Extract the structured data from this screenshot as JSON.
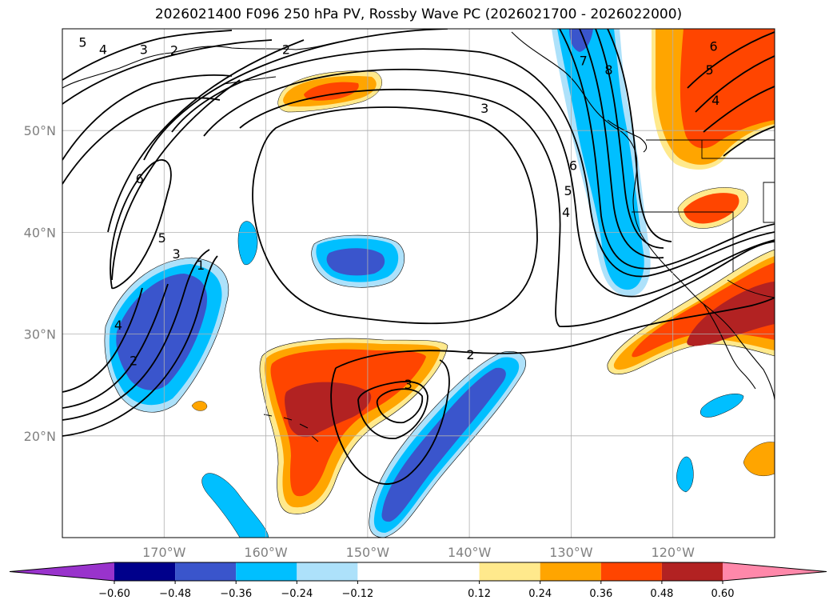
{
  "title": "2026021400 F096 250 hPa PV, Rossby Wave PC (2026021700 - 2026022000)",
  "colors": {
    "neg_extend": "#9933cc",
    "n060": "#00008b",
    "n048": "#3a55cc",
    "n036": "#00bfff",
    "n024": "#ade1fa",
    "neutral": "#ffffff",
    "p012": "#ffe98c",
    "p024": "#ffa500",
    "p036": "#ff4500",
    "p048": "#b22222",
    "pos_extend": "#ff88aa",
    "grid": "#b0b0b0",
    "coast": "#000000"
  },
  "chart_data": {
    "type": "map",
    "projection": "PlateCarree",
    "extent_lon": [
      -180,
      -110
    ],
    "extent_lat": [
      10,
      60
    ],
    "lat_ticks": [
      {
        "value": 20,
        "label": "20°N"
      },
      {
        "value": 30,
        "label": "30°N"
      },
      {
        "value": 40,
        "label": "40°N"
      },
      {
        "value": 50,
        "label": "50°N"
      }
    ],
    "lon_ticks": [
      {
        "value": -170,
        "label": "170°W"
      },
      {
        "value": -160,
        "label": "160°W"
      },
      {
        "value": -150,
        "label": "150°W"
      },
      {
        "value": -140,
        "label": "140°W"
      },
      {
        "value": -130,
        "label": "130°W"
      },
      {
        "value": -120,
        "label": "120°W"
      }
    ],
    "colorbar": {
      "boundaries": [
        -0.6,
        -0.48,
        -0.36,
        -0.24,
        -0.12,
        0.12,
        0.24,
        0.36,
        0.48,
        0.6
      ],
      "tick_labels": [
        "−0.60",
        "−0.48",
        "−0.36",
        "−0.24",
        "−0.12",
        "0.12",
        "0.24",
        "0.36",
        "0.48",
        "0.60"
      ],
      "extend": "both"
    },
    "contour_labels": [
      {
        "text": "5",
        "lon": -178.0,
        "lat": 58.7
      },
      {
        "text": "4",
        "lon": -176.0,
        "lat": 58.0
      },
      {
        "text": "3",
        "lon": -172.0,
        "lat": 58.0
      },
      {
        "text": "2",
        "lon": -169.0,
        "lat": 57.9
      },
      {
        "text": "2",
        "lon": -158.0,
        "lat": 58.0
      },
      {
        "text": "3",
        "lon": -138.5,
        "lat": 52.2
      },
      {
        "text": "6",
        "lon": -172.4,
        "lat": 45.3
      },
      {
        "text": "5",
        "lon": -170.2,
        "lat": 39.5
      },
      {
        "text": "3",
        "lon": -168.8,
        "lat": 37.9
      },
      {
        "text": "1",
        "lon": -166.4,
        "lat": 36.8
      },
      {
        "text": "4",
        "lon": -174.5,
        "lat": 30.9
      },
      {
        "text": "2",
        "lon": -173.0,
        "lat": 27.4
      },
      {
        "text": "2",
        "lon": -139.9,
        "lat": 28.0
      },
      {
        "text": "3",
        "lon": -146.0,
        "lat": 25.1
      },
      {
        "text": "7",
        "lon": -128.8,
        "lat": 56.9
      },
      {
        "text": "8",
        "lon": -126.3,
        "lat": 56.0
      },
      {
        "text": "6",
        "lon": -129.8,
        "lat": 46.6
      },
      {
        "text": "5",
        "lon": -130.3,
        "lat": 44.1
      },
      {
        "text": "4",
        "lon": -130.5,
        "lat": 42.0
      },
      {
        "text": "6",
        "lon": -116.0,
        "lat": 58.3
      },
      {
        "text": "5",
        "lon": -116.4,
        "lat": 56.0
      },
      {
        "text": "4",
        "lon": -115.8,
        "lat": 53.0
      }
    ]
  }
}
